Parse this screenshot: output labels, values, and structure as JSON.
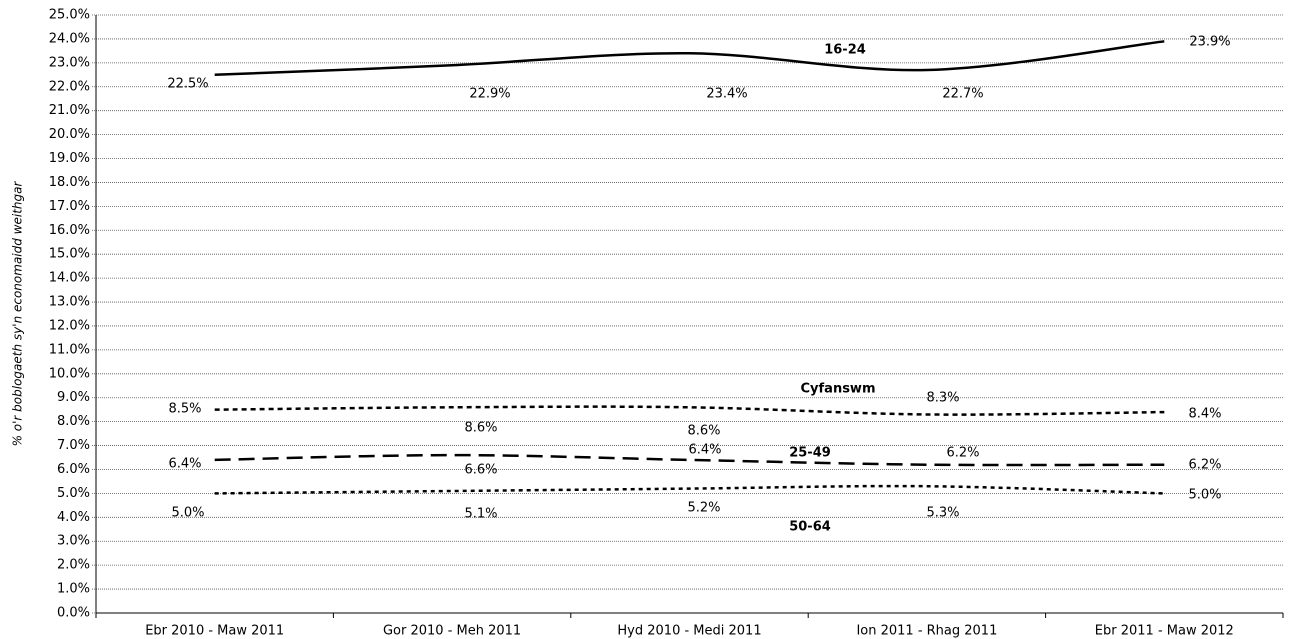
{
  "chart_data": {
    "type": "line",
    "y_label": "% o'r boblogaeth sy'n economaidd weithgar",
    "categories": [
      "Ebr 2010 - Maw 2011",
      "Gor 2010 -  Meh 2011",
      "Hyd 2010 - Medi 2011",
      "Ion 2011 - Rhag 2011",
      "Ebr 2011 - Maw 2012"
    ],
    "series": [
      {
        "name": "16-24",
        "color": "#000000",
        "values": [
          22.5,
          22.9,
          23.4,
          22.7,
          23.9
        ],
        "value_labels": [
          "22.5%",
          "22.9%",
          "23.4%",
          "22.7%",
          "23.9%"
        ]
      },
      {
        "name": "Cyfanswm",
        "color": "#000000",
        "values": [
          8.5,
          8.6,
          8.6,
          8.3,
          8.4
        ],
        "value_labels": [
          "8.5%",
          "8.6%",
          "8.6%",
          "8.3%",
          "8.4%"
        ]
      },
      {
        "name": "25-49",
        "color": "#000000",
        "values": [
          6.4,
          6.6,
          6.4,
          6.2,
          6.2
        ],
        "value_labels": [
          "6.4%",
          "6.6%",
          "6.4%",
          "6.2%",
          "6.2%"
        ]
      },
      {
        "name": "50-64",
        "color": "#000000",
        "values": [
          5.0,
          5.1,
          5.2,
          5.3,
          5.0
        ],
        "value_labels": [
          "5.0%",
          "5.1%",
          "5.2%",
          "5.3%",
          "5.0%"
        ]
      }
    ],
    "ylim": [
      0,
      25
    ],
    "yticks": [
      {
        "value": 0,
        "label": "0.0%"
      },
      {
        "value": 1,
        "label": "1.0%"
      },
      {
        "value": 2,
        "label": "2.0%"
      },
      {
        "value": 3,
        "label": "3.0%"
      },
      {
        "value": 4,
        "label": "4.0%"
      },
      {
        "value": 5,
        "label": "5.0%"
      },
      {
        "value": 6,
        "label": "6.0%"
      },
      {
        "value": 7,
        "label": "7.0%"
      },
      {
        "value": 8,
        "label": "8.0%"
      },
      {
        "value": 9,
        "label": "9.0%"
      },
      {
        "value": 10,
        "label": "10.0%"
      },
      {
        "value": 11,
        "label": "11.0%"
      },
      {
        "value": 12,
        "label": "12.0%"
      },
      {
        "value": 13,
        "label": "13.0%"
      },
      {
        "value": 14,
        "label": "14.0%"
      },
      {
        "value": 15,
        "label": "15.0%"
      },
      {
        "value": 16,
        "label": "16.0%"
      },
      {
        "value": 17,
        "label": "17.0%"
      },
      {
        "value": 18,
        "label": "18.0%"
      },
      {
        "value": 19,
        "label": "19.0%"
      },
      {
        "value": 20,
        "label": "20.0%"
      },
      {
        "value": 21,
        "label": "21.0%"
      },
      {
        "value": 22,
        "label": "22.0%"
      },
      {
        "value": 23,
        "label": "23.0%"
      },
      {
        "value": 24,
        "label": "24.0%"
      },
      {
        "value": 25,
        "label": "25.0%"
      }
    ],
    "grid": true
  }
}
